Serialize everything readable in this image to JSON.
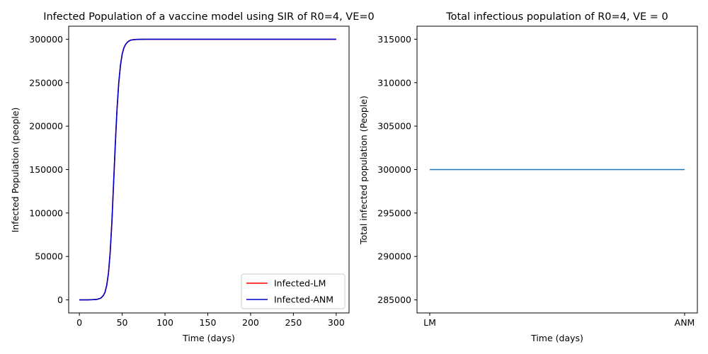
{
  "chart_data": [
    {
      "type": "line",
      "title": "Infected Population of a vaccine model using SIR of R0=4, VE=0",
      "xlabel": "Time (days)",
      "ylabel": "Infected Population (people)",
      "xlim": [
        -12.5,
        315
      ],
      "ylim": [
        -15000,
        315000
      ],
      "xticks": [
        0,
        50,
        100,
        150,
        200,
        250,
        300
      ],
      "yticks": [
        0,
        50000,
        100000,
        150000,
        200000,
        250000,
        300000
      ],
      "grid": false,
      "legend_position": "lower-right",
      "series": [
        {
          "name": "Infected-LM",
          "color": "#ff0000",
          "x": [
            0,
            10,
            20,
            25,
            28,
            30,
            32,
            34,
            36,
            38,
            40,
            42,
            44,
            46,
            48,
            50,
            52,
            54,
            56,
            58,
            60,
            65,
            70,
            80,
            100,
            150,
            200,
            250,
            300
          ],
          "y": [
            0,
            50,
            500,
            2000,
            5000,
            9000,
            17000,
            31000,
            55000,
            90000,
            135000,
            180000,
            220000,
            250000,
            270000,
            283000,
            290000,
            294000,
            296500,
            298000,
            299000,
            299700,
            299900,
            300000,
            300000,
            300000,
            300000,
            300000,
            300000
          ]
        },
        {
          "name": "Infected-ANM",
          "color": "#0000cc",
          "x": [
            0,
            10,
            20,
            25,
            28,
            30,
            32,
            34,
            36,
            38,
            40,
            42,
            44,
            46,
            48,
            50,
            52,
            54,
            56,
            58,
            60,
            65,
            70,
            80,
            100,
            150,
            200,
            250,
            300
          ],
          "y": [
            0,
            50,
            500,
            2000,
            5000,
            9000,
            17000,
            31000,
            55000,
            90000,
            135000,
            180000,
            220000,
            250000,
            270000,
            283000,
            290000,
            294000,
            296500,
            298000,
            299000,
            299700,
            299900,
            300000,
            300000,
            300000,
            300000,
            300000,
            300000
          ]
        }
      ]
    },
    {
      "type": "line",
      "title": "Total infectious population of R0=4, VE = 0",
      "xlabel": "Time (days)",
      "ylabel": "Total infected population (People)",
      "categories": [
        "LM",
        "ANM"
      ],
      "ylim": [
        283500,
        316500
      ],
      "yticks": [
        285000,
        290000,
        295000,
        300000,
        305000,
        310000,
        315000
      ],
      "grid": false,
      "series": [
        {
          "color": "#1f77b4",
          "values": [
            300000,
            300000
          ]
        }
      ]
    }
  ]
}
